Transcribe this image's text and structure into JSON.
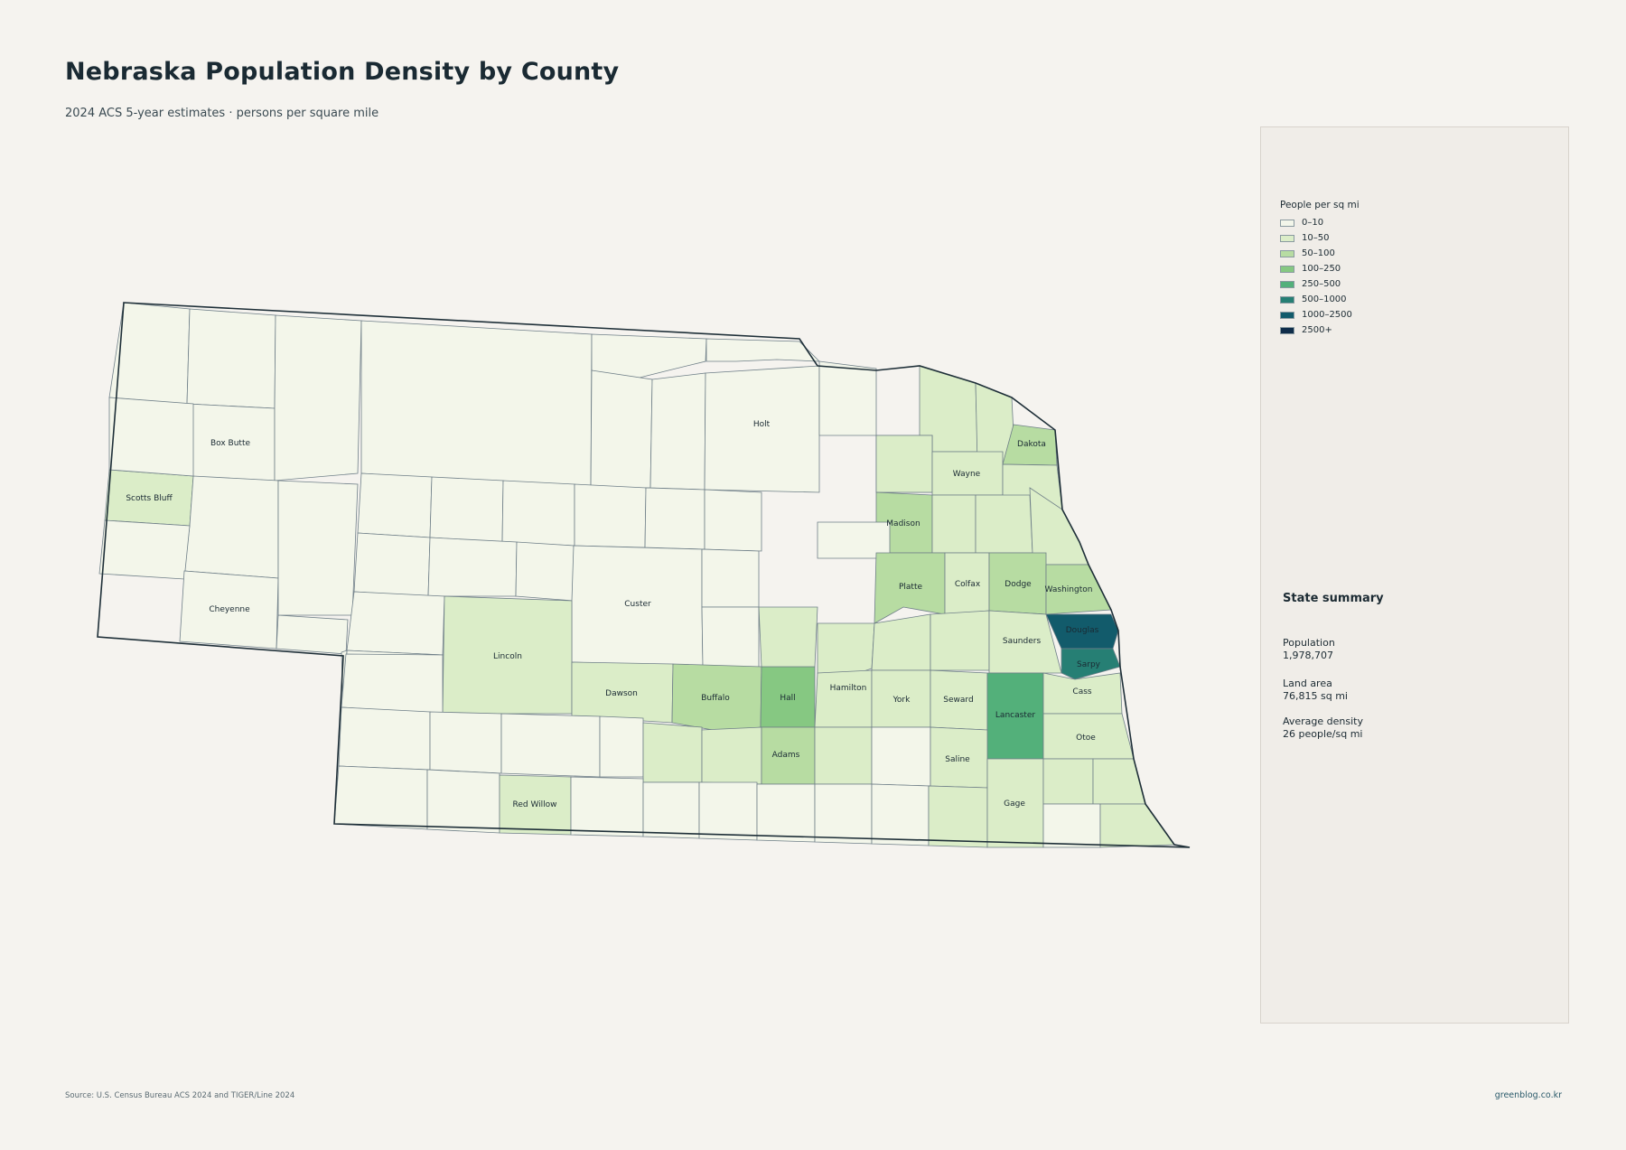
{
  "header": {
    "title": "Nebraska Population Density by County",
    "subtitle": "2024 ACS 5-year estimates · persons per square mile"
  },
  "legend": {
    "title": "People per sq mi",
    "items": [
      {
        "label": "0–10",
        "color": "#f3f6ea"
      },
      {
        "label": "10–50",
        "color": "#dbedc8"
      },
      {
        "label": "50–100",
        "color": "#b7dca2"
      },
      {
        "label": "100–250",
        "color": "#86c882"
      },
      {
        "label": "250–500",
        "color": "#53b07a"
      },
      {
        "label": "500–1000",
        "color": "#267f74"
      },
      {
        "label": "1000–2500",
        "color": "#125b6b"
      },
      {
        "label": "2500+",
        "color": "#0f2d4a"
      }
    ]
  },
  "summary": {
    "title": "State summary",
    "population_label": "Population",
    "population_value": "1,978,707",
    "land_label": "Land area",
    "land_value": "76,815 sq mi",
    "density_label": "Average density",
    "density_value": "26 people/sq mi"
  },
  "map": {
    "labels": [
      {
        "name": "Box Butte",
        "class": "0–10"
      },
      {
        "name": "Scotts Bluff",
        "class": "10–50"
      },
      {
        "name": "Cheyenne",
        "class": "0–10"
      },
      {
        "name": "Holt",
        "class": "0–10"
      },
      {
        "name": "Custer",
        "class": "0–10"
      },
      {
        "name": "Lincoln",
        "class": "10–50"
      },
      {
        "name": "Dawson",
        "class": "10–50"
      },
      {
        "name": "Buffalo",
        "class": "50–100"
      },
      {
        "name": "Hall",
        "class": "100–250"
      },
      {
        "name": "Adams",
        "class": "50–100"
      },
      {
        "name": "Red Willow",
        "class": "10–50"
      },
      {
        "name": "Hamilton",
        "class": "10–50"
      },
      {
        "name": "York",
        "class": "10–50"
      },
      {
        "name": "Seward",
        "class": "10–50"
      },
      {
        "name": "Saline",
        "class": "10–50"
      },
      {
        "name": "Gage",
        "class": "10–50"
      },
      {
        "name": "Lancaster",
        "class": "250–500"
      },
      {
        "name": "Otoe",
        "class": "10–50"
      },
      {
        "name": "Cass",
        "class": "10–50"
      },
      {
        "name": "Saunders",
        "class": "10–50"
      },
      {
        "name": "Sarpy",
        "class": "500–1000"
      },
      {
        "name": "Douglas",
        "class": "1000–2500"
      },
      {
        "name": "Washington",
        "class": "50–100"
      },
      {
        "name": "Dodge",
        "class": "50–100"
      },
      {
        "name": "Colfax",
        "class": "10–50"
      },
      {
        "name": "Platte",
        "class": "50–100"
      },
      {
        "name": "Madison",
        "class": "50–100"
      },
      {
        "name": "Wayne",
        "class": "10–50"
      },
      {
        "name": "Dakota",
        "class": "50–100"
      }
    ]
  },
  "footer": {
    "source": "Source: U.S. Census Bureau ACS 2024 and TIGER/Line 2024",
    "credit": "greenblog.co.kr"
  }
}
